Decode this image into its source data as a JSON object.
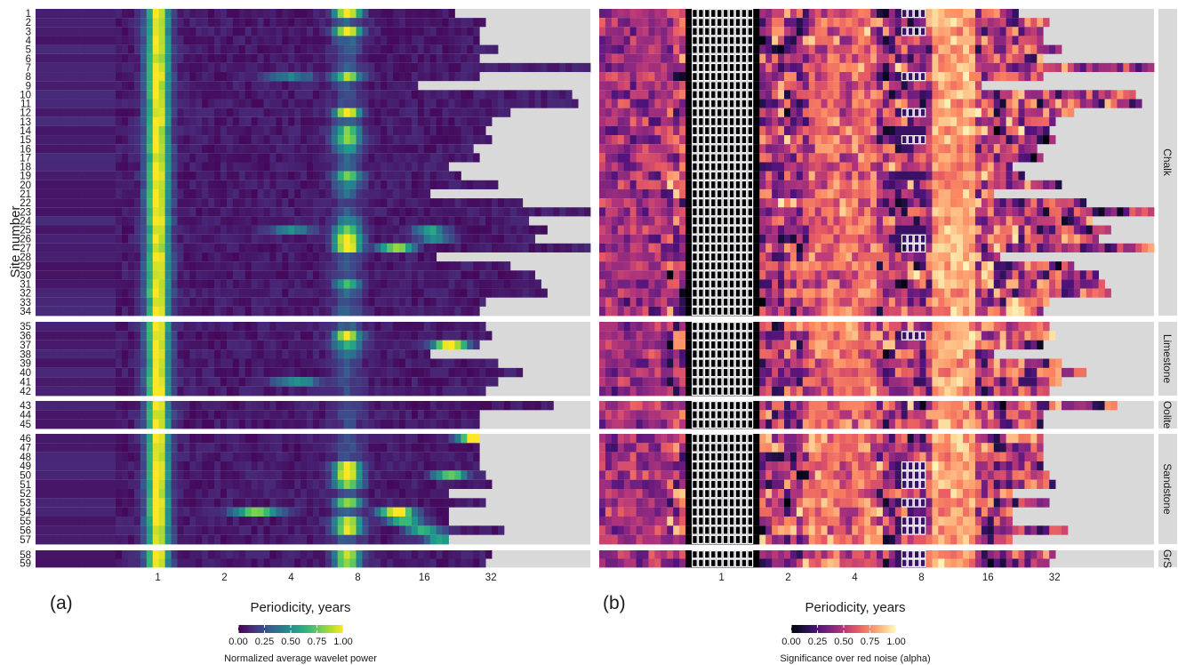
{
  "figure": {
    "y_axis_title": "Site number",
    "strip_labels": [
      "Chalk",
      "Limestone",
      "Oolite",
      "Sandstone",
      "GrS"
    ],
    "site_numbers": [
      "1",
      "2",
      "3",
      "4",
      "5",
      "6",
      "7",
      "8",
      "9",
      "10",
      "11",
      "12",
      "13",
      "14",
      "15",
      "16",
      "17",
      "18",
      "19",
      "20",
      "21",
      "22",
      "23",
      "24",
      "25",
      "26",
      "27",
      "28",
      "29",
      "30",
      "31",
      "32",
      "33",
      "34",
      "35",
      "36",
      "37",
      "38",
      "39",
      "40",
      "41",
      "42",
      "43",
      "44",
      "45",
      "46",
      "47",
      "48",
      "49",
      "50",
      "51",
      "52",
      "53",
      "54",
      "55",
      "56",
      "57",
      "58",
      "59"
    ]
  },
  "chart_data": [
    {
      "type": "heatmap",
      "panel_label": "(a)",
      "xlabel": "Periodicity, years",
      "ylabel": "Site number",
      "x_scale": "log2",
      "x_ticks": [
        "1",
        "2",
        "4",
        "8",
        "16",
        "32"
      ],
      "groups": [
        "Chalk",
        "Limestone",
        "Oolite",
        "Sandstone",
        "GrS"
      ],
      "group_sites": [
        [
          1,
          34
        ],
        [
          35,
          42
        ],
        [
          43,
          45
        ],
        [
          46,
          57
        ],
        [
          58,
          59
        ]
      ],
      "max_period_years": [
        22,
        31,
        29,
        29,
        35,
        29,
        90,
        28,
        15,
        75,
        80,
        40,
        33,
        31,
        33,
        26,
        28,
        21,
        24,
        35,
        17,
        45,
        90,
        46,
        56,
        52,
        90,
        18,
        39,
        50,
        54,
        56,
        31,
        29,
        31,
        32,
        29,
        17,
        35,
        44,
        35,
        31,
        60,
        28,
        29,
        28,
        29,
        29,
        29,
        30,
        33,
        20,
        31,
        20,
        20,
        37,
        20,
        33,
        31
      ],
      "colorbar": {
        "label": "Normalized average wavelet power",
        "ticks": [
          "0.00",
          "0.25",
          "0.50",
          "0.75",
          "1.00"
        ],
        "colors": [
          "#440154",
          "#3b528b",
          "#21918c",
          "#5ec962",
          "#fde725"
        ]
      },
      "missing_color": "#d9d9d9"
    },
    {
      "type": "heatmap",
      "panel_label": "(b)",
      "xlabel": "Periodicity, years",
      "x_scale": "log2",
      "x_ticks": [
        "1",
        "2",
        "4",
        "8",
        "16",
        "32"
      ],
      "groups": [
        "Chalk",
        "Limestone",
        "Oolite",
        "Sandstone",
        "GrS"
      ],
      "group_sites": [
        [
          1,
          34
        ],
        [
          35,
          42
        ],
        [
          43,
          45
        ],
        [
          46,
          57
        ],
        [
          58,
          59
        ]
      ],
      "max_period_years": [
        22,
        31,
        29,
        29,
        35,
        29,
        90,
        28,
        15,
        75,
        80,
        40,
        33,
        31,
        33,
        26,
        28,
        21,
        24,
        35,
        17,
        45,
        90,
        46,
        56,
        52,
        90,
        18,
        39,
        50,
        54,
        56,
        31,
        29,
        31,
        32,
        29,
        17,
        35,
        44,
        35,
        31,
        60,
        28,
        29,
        28,
        29,
        29,
        29,
        30,
        33,
        20,
        31,
        20,
        20,
        37,
        20,
        33,
        31
      ],
      "significant_cells_outlined": true,
      "colorbar": {
        "label": "Significance over red noise (alpha)",
        "ticks": [
          "0.00",
          "0.25",
          "0.50",
          "0.75",
          "1.00"
        ],
        "colors": [
          "#000004",
          "#51127c",
          "#b73779",
          "#fc8961",
          "#fcfdbf"
        ]
      },
      "missing_color": "#d9d9d9"
    }
  ]
}
